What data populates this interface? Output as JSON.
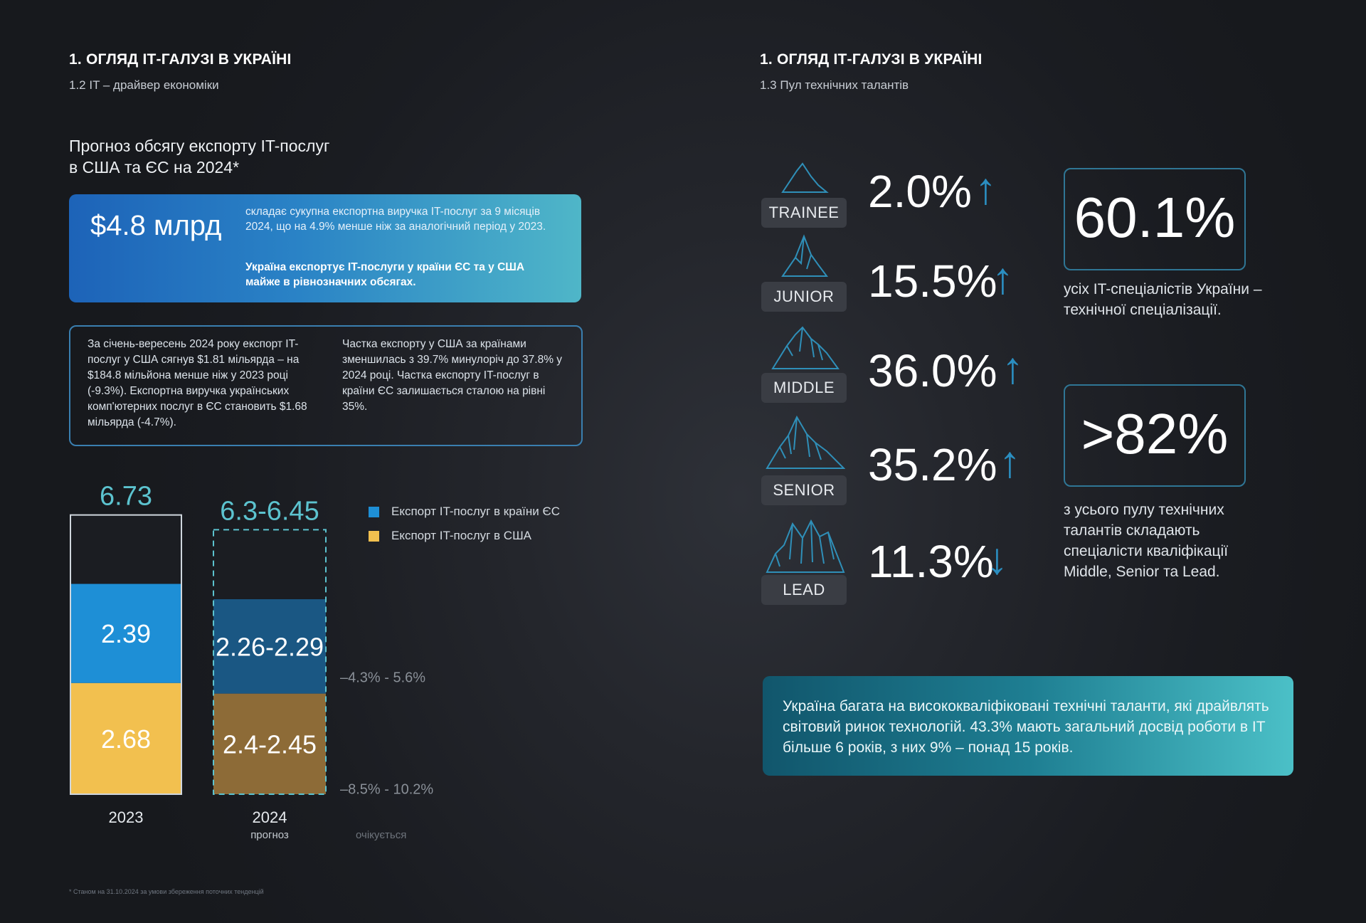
{
  "left": {
    "section_title": "1. ОГЛЯД ІТ-ГАЛУЗІ В УКРАЇНІ",
    "section_sub": "1.2 IT – драйвер економіки",
    "headline_line1": "Прогноз обсягу експорту IT-послуг",
    "headline_line2": "в США та ЄС на 2024*",
    "blue_card": {
      "big": "$4.8 млрд",
      "text": "складає сукупна експортна виручка IT-послуг за 9 місяців 2024, що на 4.9% менше ніж за аналогічний період у 2023.",
      "bold": "Україна експортує IT-послуги у країни ЄС та у США майже в рівнозначних обсягах."
    },
    "outline_card": {
      "col1": "За січень-вересень 2024 року експорт IT-послуг у США сягнув $1.81 мільярда – на $184.8 мільйона менше ніж у 2023 році (-9.3%). Експортна виручка українських комп'ютерних послуг в ЄС становить $1.68 мільярда (-4.7%).",
      "col2": "Частка експорту у США за країнами зменшилась з 39.7% минулоріч до 37.8% у 2024 році. Частка експорту IT-послуг в країни ЄС залишається сталою на рівні 35%."
    },
    "legend": {
      "eu": "Експорт IT-послуг в країни ЄС",
      "us": "Експорт IT-послуг в США"
    },
    "footnote": "* Станом на 31.10.2024 за умови збереження поточних тенденцій"
  },
  "chart_data": {
    "type": "bar",
    "stacked": true,
    "categories": [
      "2023",
      "2024"
    ],
    "category_sublabels": [
      "",
      "прогноз"
    ],
    "totals": [
      "6.73",
      "6.3-6.45"
    ],
    "series": [
      {
        "name": "Експорт IT-послуг в США",
        "values": [
          2.68,
          2.425
        ],
        "labels": [
          "2.68",
          "2.4-2.45"
        ],
        "color": "#f2c04f",
        "color_forecast": "#8d6b37"
      },
      {
        "name": "Експорт IT-послуг в країни ЄС",
        "values": [
          2.39,
          2.275
        ],
        "labels": [
          "2.39",
          "2.26-2.29"
        ],
        "color": "#1e8fd6",
        "color_forecast": "#1a5783"
      },
      {
        "name": "",
        "values": [
          1.66,
          1.675
        ],
        "labels": [
          "",
          ""
        ],
        "color": "#1b1d22"
      }
    ],
    "annotations": [
      "–4.3% - 5.6%",
      "–8.5% - 10.2%"
    ],
    "annotation_note": "очікується",
    "total_color": "#5cc3cf"
  },
  "right": {
    "section_title": "1. ОГЛЯД ІТ-ГАЛУЗІ В УКРАЇНІ",
    "section_sub": "1.3 Пул технічних талантів",
    "levels": [
      {
        "name": "TRAINEE",
        "pct": "2.0%",
        "arrow": "↑",
        "icon": "mountain-small-icon"
      },
      {
        "name": "JUNIOR",
        "pct": "15.5%",
        "arrow": "↑",
        "icon": "mountain-peak-icon"
      },
      {
        "name": "MIDDLE",
        "pct": "36.0%",
        "arrow": "↑",
        "icon": "mountain-range-icon"
      },
      {
        "name": "SENIOR",
        "pct": "35.2%",
        "arrow": "↑",
        "icon": "mountain-high-icon"
      },
      {
        "name": "LEAD",
        "pct": "11.3%",
        "arrow": "↓",
        "icon": "mountain-summit-icon"
      }
    ],
    "stat1": {
      "value": "60.1%",
      "caption_line1": "усіх IT-спеціалістів України –",
      "caption_line2": "технічної спеціалізації."
    },
    "stat2": {
      "value": ">82%",
      "caption_lines": [
        "з усього пулу технічних",
        "талантів складають",
        "спеціалісти кваліфікації",
        "Middle, Senior та Lead."
      ]
    },
    "teal_card": "Україна багата на висококваліфіковані технічні таланти, які драйвлять світовий ринок технологій. 43.3% мають загальний досвід роботи в IT більше 6 років, з них 9% – понад 15 років."
  }
}
